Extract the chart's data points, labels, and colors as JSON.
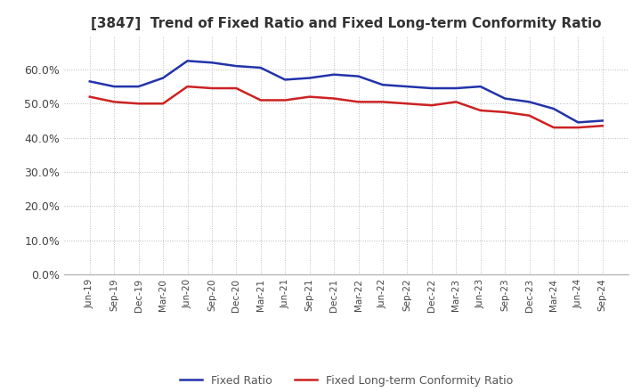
{
  "title": "[3847]  Trend of Fixed Ratio and Fixed Long-term Conformity Ratio",
  "x_labels": [
    "Jun-19",
    "Sep-19",
    "Dec-19",
    "Mar-20",
    "Jun-20",
    "Sep-20",
    "Dec-20",
    "Mar-21",
    "Jun-21",
    "Sep-21",
    "Dec-21",
    "Mar-22",
    "Jun-22",
    "Sep-22",
    "Dec-22",
    "Mar-23",
    "Jun-23",
    "Sep-23",
    "Dec-23",
    "Mar-24",
    "Jun-24",
    "Sep-24"
  ],
  "fixed_ratio": [
    56.5,
    55.0,
    55.0,
    57.5,
    62.5,
    62.0,
    61.0,
    60.5,
    57.0,
    57.5,
    58.5,
    58.0,
    55.5,
    55.0,
    54.5,
    54.5,
    55.0,
    51.5,
    50.5,
    48.5,
    44.5,
    45.0
  ],
  "fixed_lt_ratio": [
    52.0,
    50.5,
    50.0,
    50.0,
    55.0,
    54.5,
    54.5,
    51.0,
    51.0,
    52.0,
    51.5,
    50.5,
    50.5,
    50.0,
    49.5,
    50.5,
    48.0,
    47.5,
    46.5,
    43.0,
    43.0,
    43.5
  ],
  "blue_color": "#2233AA",
  "red_color": "#CC2222",
  "background_color": "#FFFFFF",
  "grid_color": "#BBBBBB",
  "ylim": [
    0,
    70
  ],
  "yticks": [
    0,
    10,
    20,
    30,
    40,
    50,
    60
  ],
  "legend_fixed_ratio": "Fixed Ratio",
  "legend_fixed_lt_ratio": "Fixed Long-term Conformity Ratio"
}
